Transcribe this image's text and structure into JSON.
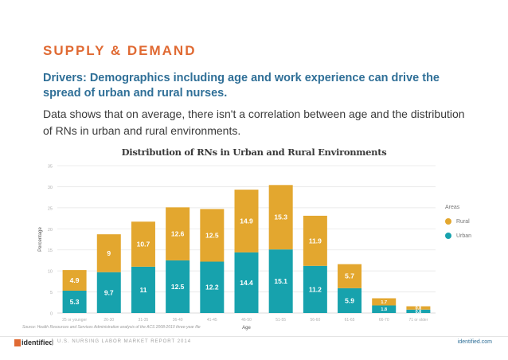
{
  "section_title": "SUPPLY & DEMAND",
  "headline": "Drivers: Demographics including age and work experience can drive the spread of urban and rural nurses.",
  "body": "Data shows that on average, there isn't a correlation between age and the distribution of RNs in urban and rural environments.",
  "source": "Source: Health Resources and Services Administration analysis of the ACS 2008-2010 three-year file",
  "footer": {
    "logo": "identified",
    "report": "U.S. NURSING LABOR MARKET REPORT 2014",
    "url": "identified.com"
  },
  "colors": {
    "rural": "#e3a72f",
    "urban": "#17a2ad",
    "accent": "#e06a33",
    "headline": "#2f6f97"
  },
  "chart_data": {
    "type": "bar",
    "stacked": true,
    "title": "Distribution of RNs in Urban and Rural Environments",
    "xlabel": "Age",
    "ylabel": "Percentage",
    "ylim": [
      0,
      35
    ],
    "yticks": [
      0,
      5,
      10,
      15,
      20,
      25,
      30,
      35
    ],
    "categories": [
      "25 or younger",
      "26-30",
      "31-35",
      "36-40",
      "41-45",
      "46-50",
      "51-55",
      "56-60",
      "61-65",
      "66-70",
      "71 or older"
    ],
    "series": [
      {
        "name": "Urban",
        "values": [
          5.3,
          9.7,
          11,
          12.5,
          12.2,
          14.4,
          15.1,
          11.2,
          5.9,
          1.8,
          0.8
        ]
      },
      {
        "name": "Rural",
        "values": [
          4.9,
          9,
          10.7,
          12.6,
          12.5,
          14.9,
          15.3,
          11.9,
          5.7,
          1.7,
          0.8
        ]
      }
    ],
    "legend_title": "Areas",
    "legend": [
      {
        "name": "Rural",
        "color": "#e3a72f"
      },
      {
        "name": "Urban",
        "color": "#17a2ad"
      }
    ]
  }
}
